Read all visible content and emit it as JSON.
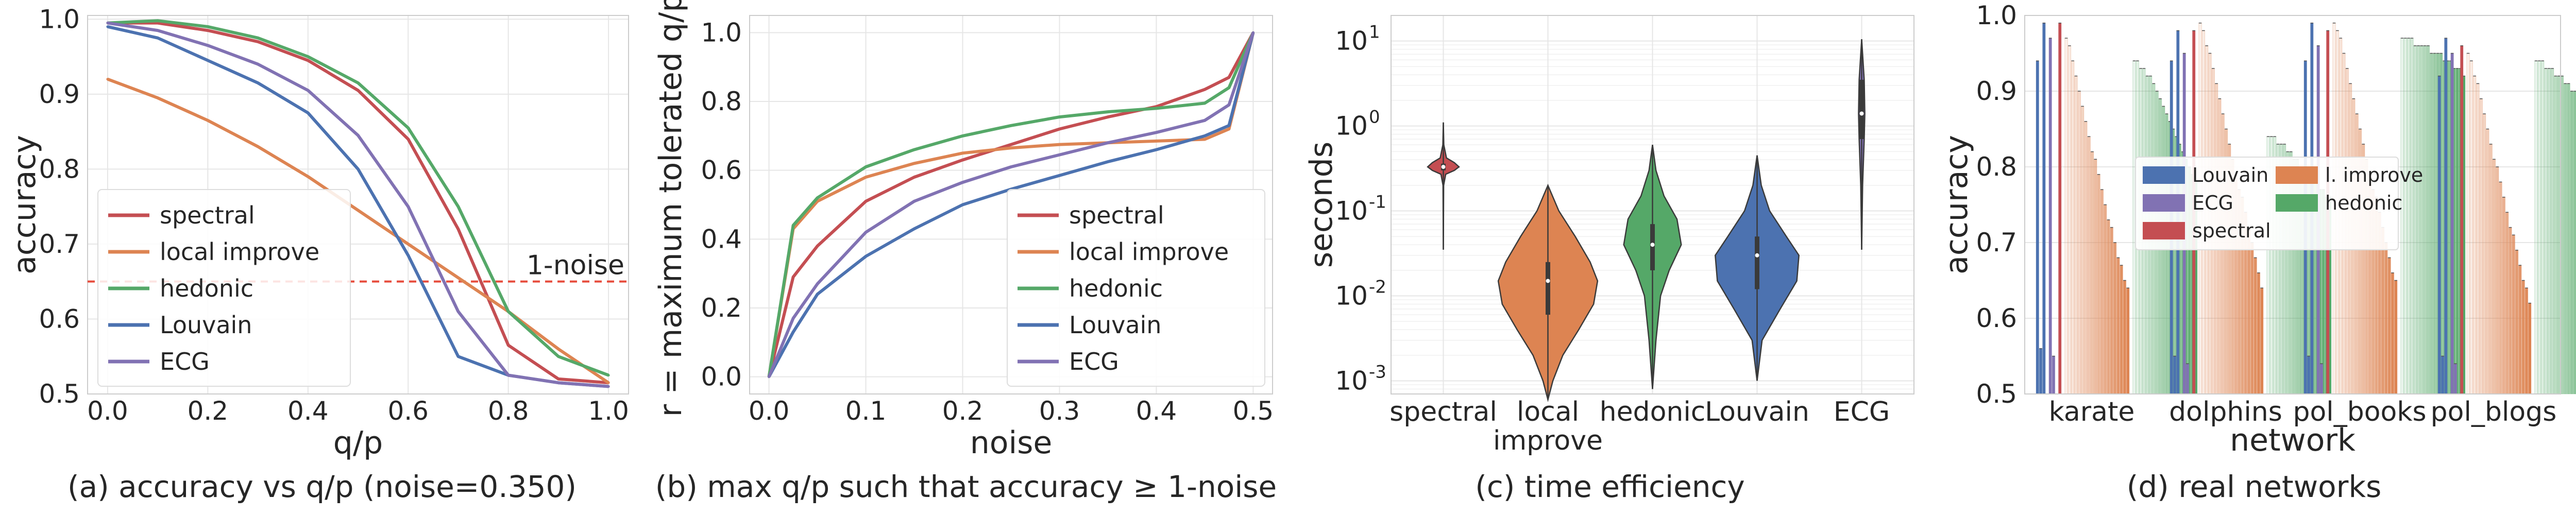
{
  "colors": {
    "spectral": "#c44e52",
    "local_improve": "#dd8452",
    "hedonic": "#55a868",
    "louvain": "#4c72b0",
    "ecg": "#8172b3",
    "threshold": "#e74c3c",
    "grid": "#e6e6e6"
  },
  "chart_data": [
    {
      "type": "line",
      "caption": "(a) accuracy vs q/p (noise=0.350)",
      "xlabel": "q/p",
      "ylabel": "accuracy",
      "xlim": [
        -0.04,
        1.04
      ],
      "ylim": [
        0.5,
        1.005
      ],
      "xticks": [
        "0.0",
        "0.2",
        "0.4",
        "0.6",
        "0.8",
        "1.0"
      ],
      "yticks": [
        "0.5",
        "0.6",
        "0.7",
        "0.8",
        "0.9",
        "1.0"
      ],
      "grid": true,
      "legend_position": "lower-left",
      "annotation": {
        "text": "1-noise",
        "y": 0.65
      },
      "x": [
        0.0,
        0.1,
        0.2,
        0.3,
        0.4,
        0.5,
        0.6,
        0.7,
        0.8,
        0.9,
        1.0
      ],
      "series": [
        {
          "name": "spectral",
          "key": "spectral",
          "values": [
            0.995,
            0.995,
            0.985,
            0.97,
            0.945,
            0.905,
            0.84,
            0.72,
            0.565,
            0.52,
            0.515
          ]
        },
        {
          "name": "local improve",
          "key": "local_improve",
          "values": [
            0.92,
            0.895,
            0.865,
            0.83,
            0.79,
            0.745,
            0.7,
            0.655,
            0.61,
            0.56,
            0.515
          ]
        },
        {
          "name": "hedonic",
          "key": "hedonic",
          "values": [
            0.995,
            0.998,
            0.99,
            0.975,
            0.95,
            0.915,
            0.855,
            0.75,
            0.61,
            0.55,
            0.525
          ]
        },
        {
          "name": "Louvain",
          "key": "louvain",
          "values": [
            0.99,
            0.975,
            0.945,
            0.915,
            0.875,
            0.8,
            0.685,
            0.55,
            0.525,
            0.515,
            0.51
          ]
        },
        {
          "name": "ECG",
          "key": "ecg",
          "values": [
            0.995,
            0.985,
            0.965,
            0.94,
            0.905,
            0.845,
            0.75,
            0.61,
            0.525,
            0.515,
            0.51
          ]
        }
      ]
    },
    {
      "type": "line",
      "caption": "(b) max q/p such that accuracy ≥ 1-noise",
      "xlabel": "noise",
      "ylabel": "r = maximum tolerated q/p",
      "xlim": [
        -0.02,
        0.52
      ],
      "ylim": [
        -0.05,
        1.05
      ],
      "xticks": [
        "0.0",
        "0.1",
        "0.2",
        "0.3",
        "0.4",
        "0.5"
      ],
      "yticks": [
        "0.0",
        "0.2",
        "0.4",
        "0.6",
        "0.8",
        "1.0"
      ],
      "grid": true,
      "legend_position": "lower-right",
      "x": [
        0.0,
        0.025,
        0.05,
        0.1,
        0.15,
        0.2,
        0.25,
        0.3,
        0.35,
        0.4,
        0.45,
        0.475,
        0.5
      ],
      "series": [
        {
          "name": "spectral",
          "key": "spectral",
          "values": [
            0.0,
            0.29,
            0.38,
            0.51,
            0.58,
            0.63,
            0.675,
            0.72,
            0.755,
            0.785,
            0.835,
            0.87,
            1.0
          ]
        },
        {
          "name": "local improve",
          "key": "local_improve",
          "values": [
            0.0,
            0.43,
            0.51,
            0.58,
            0.62,
            0.65,
            0.665,
            0.675,
            0.68,
            0.685,
            0.69,
            0.72,
            1.0
          ]
        },
        {
          "name": "hedonic",
          "key": "hedonic",
          "values": [
            0.0,
            0.44,
            0.52,
            0.61,
            0.66,
            0.7,
            0.73,
            0.755,
            0.77,
            0.78,
            0.795,
            0.84,
            1.0
          ]
        },
        {
          "name": "Louvain",
          "key": "louvain",
          "values": [
            0.0,
            0.13,
            0.24,
            0.35,
            0.43,
            0.5,
            0.545,
            0.585,
            0.625,
            0.66,
            0.7,
            0.73,
            1.0
          ]
        },
        {
          "name": "ECG",
          "key": "ecg",
          "values": [
            0.0,
            0.17,
            0.27,
            0.42,
            0.51,
            0.565,
            0.61,
            0.645,
            0.68,
            0.71,
            0.745,
            0.79,
            1.0
          ]
        }
      ]
    },
    {
      "type": "violin",
      "caption": "(c) time efficiency",
      "xlabel": "",
      "ylabel": "seconds",
      "yscale": "log",
      "ylim": [
        0.0007,
        20
      ],
      "yticks": [
        0.001,
        0.01,
        0.1,
        1,
        10
      ],
      "ytick_labels": [
        "10",
        "10",
        "10",
        "10",
        "10"
      ],
      "ytick_exponents": [
        "-3",
        "-2",
        "-1",
        "0",
        "1"
      ],
      "grid": true,
      "categories": [
        "spectral",
        "local\nimprove",
        "hedonic",
        "Louvain",
        "ECG"
      ],
      "violins": [
        {
          "label": "spectral",
          "key": "spectral",
          "min": 0.035,
          "max": 1.1,
          "median": 0.33,
          "q1": 0.3,
          "q3": 0.36,
          "width": 0.3,
          "shape": [
            [
              0.035,
              0.0
            ],
            [
              0.2,
              0.02
            ],
            [
              0.27,
              0.15
            ],
            [
              0.3,
              0.7
            ],
            [
              0.33,
              1.0
            ],
            [
              0.37,
              0.7
            ],
            [
              0.42,
              0.2
            ],
            [
              0.6,
              0.03
            ],
            [
              1.1,
              0.0
            ]
          ]
        },
        {
          "label": "local improve",
          "key": "local_improve",
          "min": 0.0006,
          "max": 0.2,
          "median": 0.015,
          "q1": 0.006,
          "q3": 0.025,
          "width": 0.95,
          "shape": [
            [
              0.0006,
              0.0
            ],
            [
              0.001,
              0.1
            ],
            [
              0.002,
              0.3
            ],
            [
              0.004,
              0.62
            ],
            [
              0.008,
              0.92
            ],
            [
              0.015,
              1.0
            ],
            [
              0.025,
              0.85
            ],
            [
              0.05,
              0.55
            ],
            [
              0.1,
              0.22
            ],
            [
              0.2,
              0.0
            ]
          ]
        },
        {
          "label": "hedonic",
          "key": "hedonic",
          "min": 0.0008,
          "max": 0.6,
          "median": 0.04,
          "q1": 0.02,
          "q3": 0.07,
          "width": 0.55,
          "shape": [
            [
              0.0008,
              0.0
            ],
            [
              0.003,
              0.12
            ],
            [
              0.01,
              0.28
            ],
            [
              0.02,
              0.58
            ],
            [
              0.04,
              1.0
            ],
            [
              0.08,
              0.85
            ],
            [
              0.15,
              0.4
            ],
            [
              0.3,
              0.12
            ],
            [
              0.6,
              0.0
            ]
          ]
        },
        {
          "label": "Louvain",
          "key": "louvain",
          "min": 0.001,
          "max": 0.45,
          "median": 0.03,
          "q1": 0.012,
          "q3": 0.05,
          "width": 0.8,
          "shape": [
            [
              0.001,
              0.0
            ],
            [
              0.003,
              0.12
            ],
            [
              0.007,
              0.55
            ],
            [
              0.015,
              0.95
            ],
            [
              0.03,
              1.0
            ],
            [
              0.05,
              0.7
            ],
            [
              0.1,
              0.3
            ],
            [
              0.2,
              0.1
            ],
            [
              0.45,
              0.0
            ]
          ]
        },
        {
          "label": "ECG",
          "key": "ecg",
          "min": 0.035,
          "max": 10.5,
          "median": 1.4,
          "q1": 0.7,
          "q3": 3.5,
          "width": 0.06,
          "shape": [
            [
              0.035,
              0.0
            ],
            [
              0.2,
              0.3
            ],
            [
              0.7,
              0.8
            ],
            [
              1.4,
              1.0
            ],
            [
              3.5,
              0.8
            ],
            [
              7,
              0.3
            ],
            [
              10.5,
              0.0
            ]
          ]
        }
      ]
    },
    {
      "type": "bar",
      "caption": "(d) real networks",
      "xlabel": "network",
      "ylabel": "accuracy",
      "ylim": [
        0.5,
        1.0
      ],
      "yticks": [
        "0.5",
        "0.6",
        "0.7",
        "0.8",
        "0.9",
        "1.0"
      ],
      "grid": true,
      "legend_position": "center",
      "legend_entries": [
        {
          "name": "Louvain",
          "key": "louvain"
        },
        {
          "name": "l. improve",
          "key": "local_improve"
        },
        {
          "name": "ECG",
          "key": "ecg"
        },
        {
          "name": "hedonic",
          "key": "hedonic"
        },
        {
          "name": "spectral",
          "key": "spectral"
        }
      ],
      "categories": [
        "karate",
        "dolphins",
        "pol_books",
        "pol_blogs"
      ],
      "groups": [
        {
          "name": "karate",
          "louvain": [
            0.94,
            0.56,
            0.99
          ],
          "ecg": [
            0.97,
            0.55
          ],
          "spectral": [
            0.99
          ],
          "local_improve": [
            0.97,
            0.96,
            0.94,
            0.92,
            0.9,
            0.88,
            0.86,
            0.84,
            0.82,
            0.81,
            0.79,
            0.77,
            0.75,
            0.73,
            0.72,
            0.7,
            0.68,
            0.67,
            0.65,
            0.64
          ],
          "hedonic": [
            0.94,
            0.94,
            0.93,
            0.93,
            0.92,
            0.92,
            0.91,
            0.9,
            0.89,
            0.88,
            0.87,
            0.86,
            0.85,
            0.84,
            0.83,
            0.82,
            0.81,
            0.8,
            0.79,
            0.78
          ]
        },
        {
          "name": "dolphins",
          "louvain": [
            0.94,
            0.55,
            0.98
          ],
          "ecg": [
            0.95,
            0.54
          ],
          "spectral": [
            0.98
          ],
          "local_improve": [
            0.99,
            0.98,
            0.96,
            0.95,
            0.93,
            0.91,
            0.89,
            0.87,
            0.85,
            0.83,
            0.81,
            0.79,
            0.77,
            0.76,
            0.74,
            0.72,
            0.7,
            0.68,
            0.66,
            0.64
          ],
          "hedonic": [
            0.84,
            0.84,
            0.84,
            0.83,
            0.83,
            0.83,
            0.82,
            0.82,
            0.81,
            0.81,
            0.8,
            0.8,
            0.79,
            0.79,
            0.78,
            0.78,
            0.77,
            0.77,
            0.76,
            0.76
          ]
        },
        {
          "name": "pol_books",
          "louvain": [
            0.94,
            0.55,
            0.99
          ],
          "ecg": [
            0.96,
            0.54
          ],
          "spectral": [
            0.98
          ],
          "local_improve": [
            0.99,
            0.98,
            0.97,
            0.95,
            0.93,
            0.91,
            0.89,
            0.87,
            0.85,
            0.83,
            0.81,
            0.79,
            0.77,
            0.76,
            0.74,
            0.72,
            0.7,
            0.68,
            0.66,
            0.65
          ],
          "hedonic": [
            0.97,
            0.97,
            0.97,
            0.97,
            0.96,
            0.96,
            0.96,
            0.96,
            0.96,
            0.95,
            0.95,
            0.95,
            0.95,
            0.94,
            0.94,
            0.94,
            0.93,
            0.93,
            0.93,
            0.92
          ]
        },
        {
          "name": "pol_blogs",
          "louvain": [
            0.92,
            0.55,
            0.97
          ],
          "ecg": [
            0.95,
            0.54
          ],
          "spectral": [
            0.96
          ],
          "local_improve": [
            0.95,
            0.94,
            0.92,
            0.91,
            0.89,
            0.87,
            0.85,
            0.83,
            0.81,
            0.8,
            0.78,
            0.76,
            0.74,
            0.72,
            0.71,
            0.69,
            0.67,
            0.65,
            0.64,
            0.62
          ],
          "hedonic": [
            0.94,
            0.94,
            0.94,
            0.93,
            0.93,
            0.93,
            0.92,
            0.92,
            0.92,
            0.91,
            0.91,
            0.9,
            0.9,
            0.89,
            0.89,
            0.88,
            0.88,
            0.87,
            0.87,
            0.86
          ]
        }
      ]
    }
  ]
}
